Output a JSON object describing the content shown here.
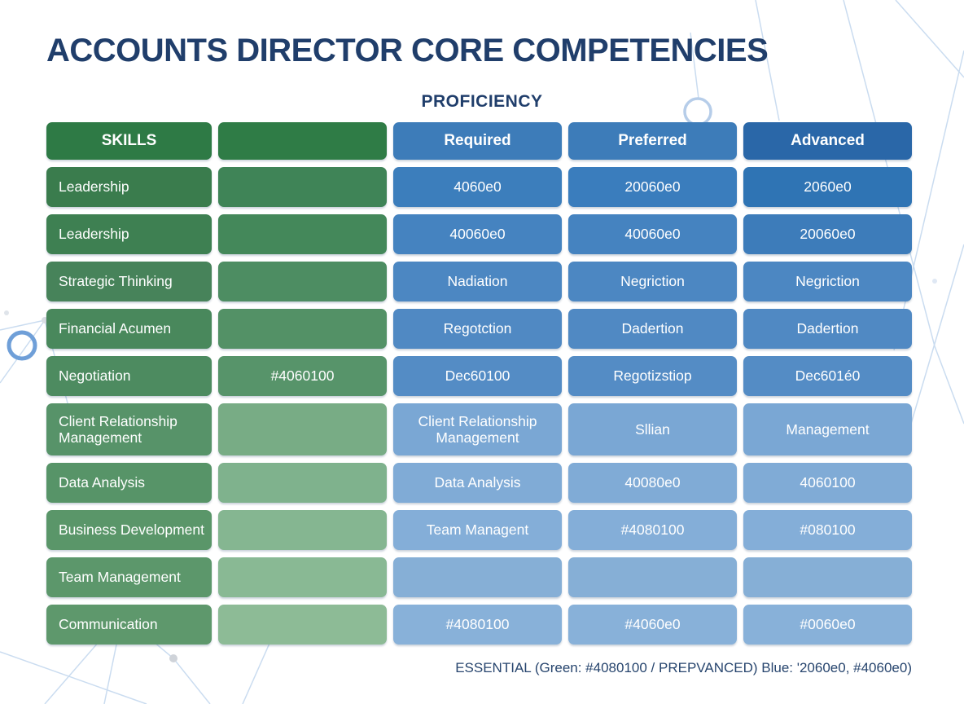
{
  "page": {
    "title": "ACCOUNTS DIRECTOR CORE COMPETENCIES",
    "subtitle": "PROFICIENCY",
    "footnote": "ESSENTIAL (Green: #4080100 / PREPVANCED) Blue: '2060e0, #4060e0)"
  },
  "colors": {
    "title_text": "#203e6b",
    "footnote_text": "#27456e",
    "background": "#ffffff",
    "deco_line": "#cadcf0",
    "deco_circle_light": "#b6cde9",
    "deco_circle_strong": "#6f9fd8",
    "deco_dot": "#cfd3d9",
    "green_header": "#2e7a45",
    "blue_header": "#3d7cb9",
    "blue_header_advanced": "#2a67a8"
  },
  "table": {
    "header": {
      "cells": [
        {
          "label": "SKILLS",
          "color": "#2e7a45"
        },
        {
          "label": "",
          "color": "#2f7c46"
        },
        {
          "label": "Required",
          "color": "#3d7cb9"
        },
        {
          "label": "Preferred",
          "color": "#3d7cb9"
        },
        {
          "label": "Advanced",
          "color": "#2a67a8"
        }
      ]
    },
    "rows": [
      {
        "tall": false,
        "cells": [
          {
            "label": "Leadership",
            "color": "#3a7c4d"
          },
          {
            "label": "",
            "color": "#3f8457"
          },
          {
            "label": "4060e0",
            "color": "#3c7ebc"
          },
          {
            "label": "20060e0",
            "color": "#3a7dbd"
          },
          {
            "label": "2060e0",
            "color": "#2f74b4"
          }
        ]
      },
      {
        "tall": false,
        "cells": [
          {
            "label": "Leadership",
            "color": "#3e8052"
          },
          {
            "label": "",
            "color": "#44885a"
          },
          {
            "label": "40060e0",
            "color": "#4583c0"
          },
          {
            "label": "40060e0",
            "color": "#4583c0"
          },
          {
            "label": "20060e0",
            "color": "#3d7cba"
          }
        ]
      },
      {
        "tall": false,
        "cells": [
          {
            "label": "Strategic Thinking",
            "color": "#47835a"
          },
          {
            "label": "",
            "color": "#4d8d62"
          },
          {
            "label": "Nadiation",
            "color": "#4c87c2"
          },
          {
            "label": "Negriction",
            "color": "#4c87c2"
          },
          {
            "label": "Negriction",
            "color": "#4c87c2"
          }
        ]
      },
      {
        "tall": false,
        "cells": [
          {
            "label": "Financial Acumen",
            "color": "#49885c"
          },
          {
            "label": "",
            "color": "#539166"
          },
          {
            "label": "Regotction",
            "color": "#5089c3"
          },
          {
            "label": "Dadertion",
            "color": "#5089c3"
          },
          {
            "label": "Dadertion",
            "color": "#5089c3"
          }
        ]
      },
      {
        "tall": false,
        "cells": [
          {
            "label": "Negotiation",
            "color": "#4d8b60"
          },
          {
            "label": "#4060100",
            "color": "#57946a"
          },
          {
            "label": "Dec60100",
            "color": "#548cc5"
          },
          {
            "label": "Regotizstiop",
            "color": "#548cc5"
          },
          {
            "label": "Dec601é0",
            "color": "#548cc5"
          }
        ]
      },
      {
        "tall": true,
        "cells": [
          {
            "label": "Client Relationship Management",
            "color": "#579369"
          },
          {
            "label": "",
            "color": "#78ac85"
          },
          {
            "label": "Client Relationship Management",
            "color": "#7aa7d4"
          },
          {
            "label": "Sllian",
            "color": "#7aa7d4"
          },
          {
            "label": "Management",
            "color": "#7aa7d4"
          }
        ]
      },
      {
        "tall": false,
        "cells": [
          {
            "label": "Data Analysis",
            "color": "#579468"
          },
          {
            "label": "",
            "color": "#7fb28d"
          },
          {
            "label": "Data Analysis",
            "color": "#80abd6"
          },
          {
            "label": "40080e0",
            "color": "#80abd6"
          },
          {
            "label": "4060100",
            "color": "#80abd6"
          }
        ]
      },
      {
        "tall": false,
        "cells": [
          {
            "label": "Business Development",
            "color": "#5a9669"
          },
          {
            "label": "",
            "color": "#85b691"
          },
          {
            "label": "Team Managent",
            "color": "#84aed8"
          },
          {
            "label": "#4080100",
            "color": "#84aed8"
          },
          {
            "label": "#080100",
            "color": "#84aed8"
          }
        ]
      },
      {
        "tall": false,
        "cells": [
          {
            "label": "Team Management",
            "color": "#5c976b"
          },
          {
            "label": "",
            "color": "#89b994"
          },
          {
            "label": "",
            "color": "#86afd6"
          },
          {
            "label": "",
            "color": "#86afd6"
          },
          {
            "label": "",
            "color": "#86afd6"
          }
        ]
      },
      {
        "tall": false,
        "cells": [
          {
            "label": "Communication",
            "color": "#5e986c"
          },
          {
            "label": "",
            "color": "#8dbb96"
          },
          {
            "label": "#4080100",
            "color": "#88b1d9"
          },
          {
            "label": "#4060e0",
            "color": "#88b1d9"
          },
          {
            "label": "#0060e0",
            "color": "#88b1d9"
          }
        ]
      }
    ]
  },
  "chart_data": {
    "type": "table",
    "title": "ACCOUNTS DIRECTOR CORE COMPETENCIES",
    "subtitle": "PROFICIENCY",
    "columns": [
      "SKILLS",
      "",
      "Required",
      "Preferred",
      "Advanced"
    ],
    "rows": [
      [
        "Leadership",
        "",
        "4060e0",
        "20060e0",
        "2060e0"
      ],
      [
        "Leadership",
        "",
        "40060e0",
        "40060e0",
        "20060e0"
      ],
      [
        "Strategic Thinking",
        "",
        "Nadiation",
        "Negriction",
        "Negriction"
      ],
      [
        "Financial Acumen",
        "",
        "Regotction",
        "Dadertion",
        "Dadertion"
      ],
      [
        "Negotiation",
        "#4060100",
        "Dec60100",
        "Regotizstiop",
        "Dec601é0"
      ],
      [
        "Client Relationship Management",
        "",
        "Client Relationship Management",
        "Sllian",
        "Management"
      ],
      [
        "Data Analysis",
        "",
        "Data Analysis",
        "40080e0",
        "4060100"
      ],
      [
        "Business Development",
        "",
        "Team Managent",
        "#4080100",
        "#080100"
      ],
      [
        "Team Management",
        "",
        "",
        "",
        ""
      ],
      [
        "Communication",
        "",
        "#4080100",
        "#4060e0",
        "#0060e0"
      ]
    ],
    "footnote": "ESSENTIAL (Green: #4080100 / PREPVANCED) Blue: '2060e0, #4060e0)",
    "legend_position": "bottom-right",
    "palette_note": "green column shades #2e7a45→#8dbb96 top to bottom; blue columns #2a67a8→#88b1d9 top to bottom"
  }
}
